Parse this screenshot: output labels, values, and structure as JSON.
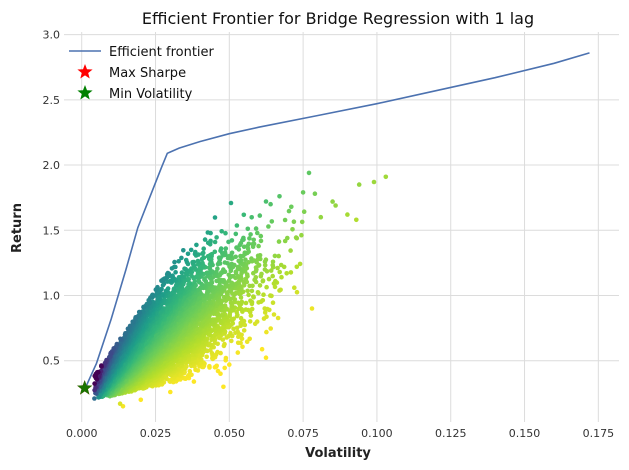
{
  "chart_data": {
    "type": "scatter",
    "title": "Efficient Frontier for Bridge Regression with 1 lag",
    "xlabel": "Volatility",
    "ylabel": "Return",
    "xlim": [
      -0.006,
      0.182
    ],
    "ylim": [
      0.03,
      3.02
    ],
    "x_ticks": [
      0.0,
      0.025,
      0.05,
      0.075,
      0.1,
      0.125,
      0.15,
      0.175
    ],
    "x_tick_labels": [
      "0.000",
      "0.025",
      "0.050",
      "0.075",
      "0.100",
      "0.125",
      "0.150",
      "0.175"
    ],
    "y_ticks": [
      0.5,
      1.0,
      1.5,
      2.0,
      2.5,
      3.0
    ],
    "y_tick_labels": [
      "0.5",
      "1.0",
      "1.5",
      "2.0",
      "2.5",
      "3.0"
    ],
    "grid": true,
    "legend_position": "top-left",
    "legend": {
      "frontier_label": "Efficient frontier",
      "max_sharpe_label": "Max Sharpe",
      "min_vol_label": "Min Volatility"
    },
    "colors": {
      "frontier": "#4c72b0",
      "max_sharpe": "#ff0000",
      "min_vol": "#008000",
      "colormap": "viridis"
    },
    "frontier": {
      "name": "Efficient frontier",
      "x": [
        0.001,
        0.005,
        0.01,
        0.015,
        0.019,
        0.023,
        0.027,
        0.029,
        0.03,
        0.033,
        0.04,
        0.05,
        0.06,
        0.08,
        0.1,
        0.12,
        0.14,
        0.16,
        0.172
      ],
      "y": [
        0.28,
        0.48,
        0.82,
        1.2,
        1.52,
        1.75,
        1.98,
        2.09,
        2.1,
        2.13,
        2.18,
        2.24,
        2.29,
        2.38,
        2.47,
        2.57,
        2.67,
        2.78,
        2.86
      ]
    },
    "max_sharpe": {
      "name": "Max Sharpe",
      "x": 0.001,
      "y": 0.29
    },
    "min_volatility": {
      "name": "Min Volatility",
      "x": 0.001,
      "y": 0.29
    },
    "random_portfolios": {
      "count": 5000,
      "color_encodes": "sharpe ratio (return / volatility)",
      "outliers": [
        [
          0.077,
          1.94
        ],
        [
          0.075,
          1.79
        ],
        [
          0.079,
          1.78
        ],
        [
          0.094,
          1.85
        ],
        [
          0.099,
          1.87
        ],
        [
          0.103,
          1.91
        ],
        [
          0.085,
          1.72
        ],
        [
          0.09,
          1.62
        ],
        [
          0.093,
          1.58
        ],
        [
          0.081,
          1.6
        ],
        [
          0.086,
          1.69
        ],
        [
          0.071,
          1.68
        ],
        [
          0.064,
          1.7
        ],
        [
          0.072,
          1.06
        ],
        [
          0.078,
          0.9
        ],
        [
          0.048,
          0.3
        ],
        [
          0.047,
          0.4
        ],
        [
          0.014,
          0.15
        ],
        [
          0.013,
          0.17
        ],
        [
          0.02,
          0.2
        ],
        [
          0.03,
          0.26
        ],
        [
          0.038,
          0.34
        ],
        [
          0.05,
          0.47
        ],
        [
          0.062,
          0.9
        ],
        [
          0.067,
          1.76
        ]
      ]
    }
  }
}
